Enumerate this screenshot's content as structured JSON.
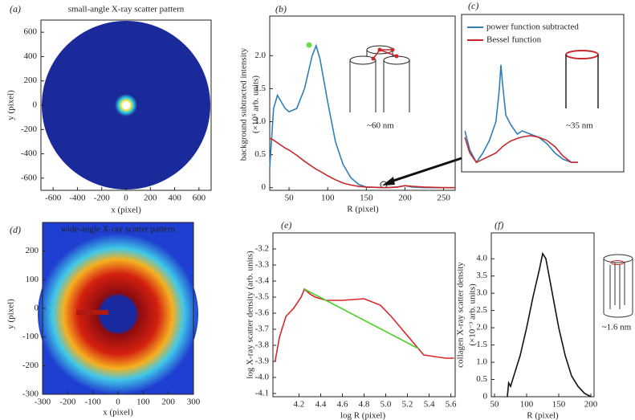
{
  "chart_data": [
    {
      "type": "image",
      "panel": "(a)",
      "title": "small-angle X-ray scatter pattern",
      "xlabel": "x (pixel)",
      "ylabel": [
        "y (pixel)"
      ],
      "xlim": [
        -700,
        700
      ],
      "ylim": [
        -700,
        700
      ],
      "xticks": [
        -600,
        -400,
        -200,
        0,
        200,
        400,
        600
      ],
      "yticks": [
        -600,
        -400,
        -200,
        0,
        200,
        400,
        600
      ]
    },
    {
      "type": "line",
      "panel": "(b)",
      "xlabel": "R (pixel)",
      "ylabel": [
        "background subtracted intensity",
        "(×10⁵ arb. units)"
      ],
      "xlim": [
        25,
        265
      ],
      "ylim": [
        -0.04,
        2.6
      ],
      "xticks": [
        50,
        100,
        150,
        200,
        250
      ],
      "yticks": [
        0,
        {
          "value": 0.5,
          "label": "0.5"
        },
        {
          "value": 1,
          "label": "1.0"
        },
        {
          "value": 1.5,
          "label": "1.5"
        },
        {
          "value": 2,
          "label": "2.0"
        }
      ],
      "annotations": [
        "~60 nm"
      ],
      "x": [
        25,
        30,
        35,
        40,
        45,
        50,
        60,
        70,
        80,
        85,
        90,
        100,
        110,
        120,
        130,
        140,
        150,
        175,
        190,
        200,
        210,
        225,
        250,
        265
      ],
      "series": [
        {
          "color": "#2f7fb8",
          "values": [
            0.3,
            1.2,
            1.4,
            1.3,
            1.2,
            1.15,
            1.2,
            1.5,
            2.0,
            2.15,
            1.95,
            1.3,
            0.7,
            0.35,
            0.15,
            0.05,
            0.01,
            0,
            0.01,
            0.03,
            0.01,
            0,
            0,
            0
          ]
        },
        {
          "color": "#c8282a",
          "values": [
            0.75,
            0.72,
            0.68,
            0.64,
            0.6,
            0.57,
            0.49,
            0.4,
            0.32,
            0.28,
            0.25,
            0.18,
            0.12,
            0.07,
            0.04,
            0.02,
            0.01,
            0,
            0.01,
            0.03,
            0.02,
            0.01,
            0,
            0
          ]
        }
      ]
    },
    {
      "type": "line",
      "panel": "(c)",
      "annotations": [
        "~35 nm"
      ],
      "xlim": [
        153,
        252
      ],
      "ylim": [
        -0.002,
        0.048
      ],
      "x": [
        155,
        158,
        162,
        166,
        170,
        174,
        176,
        177,
        178,
        180,
        183,
        187,
        190,
        195,
        200,
        205,
        210,
        215,
        220,
        224
      ],
      "series": [
        {
          "name": "power function subtracted",
          "color": "#2f7fb8",
          "values": [
            0.011,
            0.005,
            0.001,
            0.004,
            0.008,
            0.014,
            0.024,
            0.032,
            0.026,
            0.016,
            0.013,
            0.01,
            0.011,
            0.01,
            0.009,
            0.007,
            0.004,
            0.002,
            0.001,
            0.001
          ]
        },
        {
          "name": "Bessel function",
          "color": "#c8282a",
          "values": [
            0.009,
            0.004,
            0.001,
            0.002,
            0.003,
            0.004,
            0.005,
            0.0055,
            0.006,
            0.0068,
            0.0078,
            0.0086,
            0.0091,
            0.0095,
            0.009,
            0.008,
            0.006,
            0.003,
            0.001,
            0.001
          ]
        }
      ]
    },
    {
      "type": "image",
      "panel": "(d)",
      "title": "wide-angle X-ray scatter pattern",
      "xlabel": "x (pixel)",
      "ylabel": [
        "y (pixel)"
      ],
      "xlim": [
        -300,
        300
      ],
      "ylim": [
        -300,
        300
      ],
      "xticks": [
        -300,
        -200,
        -100,
        0,
        100,
        200,
        300
      ],
      "yticks": [
        -300,
        -200,
        -100,
        0,
        100,
        200
      ]
    },
    {
      "type": "line",
      "panel": "(e)",
      "xlabel": "log R (pixel)",
      "ylabel": [
        "log X-ray scatter density (arb. units)"
      ],
      "xlim": [
        3.96,
        5.64
      ],
      "ylim": [
        -4.12,
        -3.1
      ],
      "xticks": [
        {
          "value": 4.2,
          "label": "4.2"
        },
        {
          "value": 4.4,
          "label": "4.4"
        },
        {
          "value": 4.6,
          "label": "4.6"
        },
        {
          "value": 4.8,
          "label": "4.8"
        },
        {
          "value": 5,
          "label": "5.0"
        },
        {
          "value": 5.2,
          "label": "5.2"
        },
        {
          "value": 5.4,
          "label": "5.4"
        },
        {
          "value": 5.6,
          "label": "5.6"
        }
      ],
      "yticks": [
        -3.2,
        -3.3,
        -3.4,
        -3.5,
        -3.6,
        -3.7,
        -3.8,
        -3.9,
        {
          "value": -4,
          "label": "-4.0"
        },
        -4.1
      ],
      "x": [
        3.98,
        4.02,
        4.08,
        4.15,
        4.22,
        4.25,
        4.3,
        4.35,
        4.45,
        4.6,
        4.8,
        4.95,
        5.05,
        5.15,
        5.25,
        5.35,
        5.45,
        5.55,
        5.63
      ],
      "series": [
        {
          "color": "#d8262a",
          "values": [
            -3.9,
            -3.75,
            -3.62,
            -3.57,
            -3.5,
            -3.45,
            -3.48,
            -3.5,
            -3.52,
            -3.52,
            -3.51,
            -3.55,
            -3.62,
            -3.7,
            -3.78,
            -3.86,
            -3.87,
            -3.88,
            -3.88
          ]
        },
        {
          "color": "#4ccf2a",
          "x": [
            4.25,
            5.3
          ],
          "values": [
            -3.45,
            -3.82
          ]
        }
      ]
    },
    {
      "type": "line",
      "panel": "(f)",
      "xlabel": "R (pixel)",
      "ylabel": [
        "collagen X-ray scatter density",
        "(×10⁻³ arb. units)"
      ],
      "annotations": [
        "~1.6 nm"
      ],
      "xlim": [
        45,
        205
      ],
      "ylim": [
        0,
        4.75
      ],
      "xticks": [
        50,
        100,
        150,
        200
      ],
      "yticks": [
        0,
        {
          "value": 0.5,
          "label": "0.5"
        },
        {
          "value": 1,
          "label": "1.0"
        },
        {
          "value": 1.5,
          "label": "1.5"
        },
        {
          "value": 2,
          "label": "2.0"
        },
        {
          "value": 2.5,
          "label": "2.5"
        },
        {
          "value": 3,
          "label": "3.0"
        },
        {
          "value": 3.5,
          "label": "3.5"
        },
        {
          "value": 4,
          "label": "4.0"
        }
      ],
      "x": [
        70,
        72,
        75,
        80,
        90,
        100,
        110,
        120,
        125,
        130,
        140,
        150,
        160,
        170,
        180,
        190,
        200
      ],
      "series": [
        {
          "color": "#111111",
          "values": [
            0,
            0.4,
            0.3,
            0.6,
            1.2,
            2.0,
            2.9,
            3.7,
            4.15,
            4.0,
            3.0,
            2.0,
            1.2,
            0.6,
            0.3,
            0.1,
            0
          ]
        }
      ]
    }
  ]
}
